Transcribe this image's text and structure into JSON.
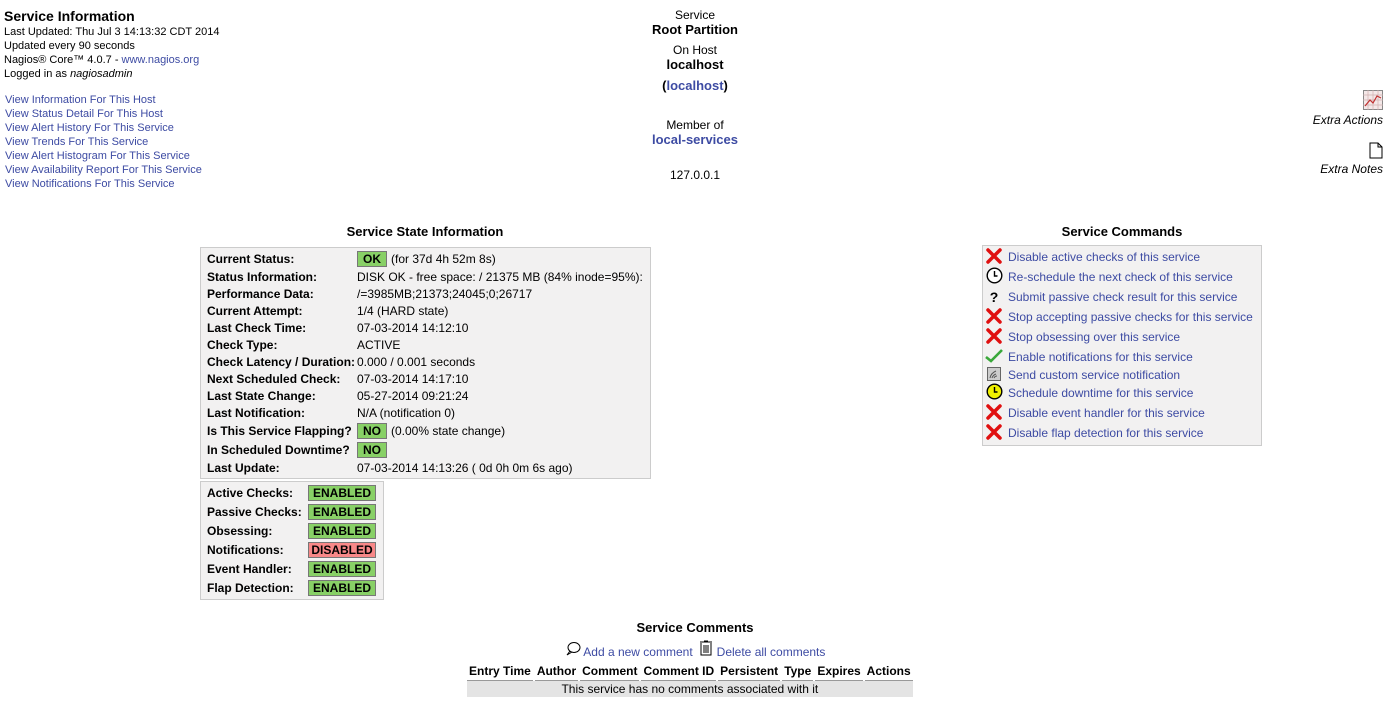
{
  "info": {
    "title": "Service Information",
    "last_updated": "Last Updated: Thu Jul 3 14:13:32 CDT 2014",
    "update_interval": "Updated every 90 seconds",
    "version_prefix": "Nagios® Core™ 4.0.7 - ",
    "version_link": "www.nagios.org",
    "logged_in_prefix": "Logged in as ",
    "user": "nagiosadmin"
  },
  "nav_links": [
    "View Information For This Host",
    "View Status Detail For This Host",
    "View Alert History For This Service",
    "View Trends For This Service",
    "View Alert Histogram For This Service",
    "View Availability Report For This Service",
    "View Notifications For This Service"
  ],
  "header": {
    "service_label": "Service",
    "service_name": "Root Partition",
    "host_label": "On Host",
    "host_name": "localhost",
    "host_alias": "localhost",
    "member_label": "Member of",
    "group": "local-services",
    "address": "127.0.0.1"
  },
  "extras": {
    "actions": "Extra Actions",
    "notes": "Extra Notes"
  },
  "state": {
    "title": "Service State Information",
    "rows": [
      {
        "label": "Current Status:",
        "badge": "OK",
        "value": "(for 37d 4h 52m 8s)"
      },
      {
        "label": "Status Information:",
        "value": "DISK OK - free space: / 21375 MB (84% inode=95%):"
      },
      {
        "label": "Performance Data:",
        "value": "/=3985MB;21373;24045;0;26717"
      },
      {
        "label": "Current Attempt:",
        "value": "1/4  (HARD state)"
      },
      {
        "label": "Last Check Time:",
        "value": "07-03-2014 14:12:10"
      },
      {
        "label": "Check Type:",
        "value": "ACTIVE"
      },
      {
        "label": "Check Latency / Duration:",
        "value": "0.000 / 0.001 seconds"
      },
      {
        "label": "Next Scheduled Check:",
        "value": "07-03-2014 14:17:10"
      },
      {
        "label": "Last State Change:",
        "value": "05-27-2014 09:21:24"
      },
      {
        "label": "Last Notification:",
        "value": "N/A (notification 0)"
      },
      {
        "label": "Is This Service Flapping?",
        "badge": "NO",
        "value": "(0.00% state change)"
      },
      {
        "label": "In Scheduled Downtime?",
        "badge": "NO",
        "value": ""
      },
      {
        "label": "Last Update:",
        "value": "07-03-2014 14:13:26  ( 0d 0h 0m 6s ago)"
      }
    ]
  },
  "features": [
    {
      "label": "Active Checks:",
      "value": "ENABLED",
      "color": "#88d066"
    },
    {
      "label": "Passive Checks:",
      "value": "ENABLED",
      "color": "#88d066"
    },
    {
      "label": "Obsessing:",
      "value": "ENABLED",
      "color": "#88d066"
    },
    {
      "label": "Notifications:",
      "value": "DISABLED",
      "color": "#f88888"
    },
    {
      "label": "Event Handler:",
      "value": "ENABLED",
      "color": "#88d066"
    },
    {
      "label": "Flap Detection:",
      "value": "ENABLED",
      "color": "#88d066"
    }
  ],
  "commands": {
    "title": "Service Commands",
    "items": [
      {
        "icon": "disable-x-icon",
        "label": "Disable active checks of this service"
      },
      {
        "icon": "clock-icon",
        "label": "Re-schedule the next check of this service"
      },
      {
        "icon": "question-icon",
        "label": "Submit passive check result for this service"
      },
      {
        "icon": "disable-x-icon",
        "label": "Stop accepting passive checks for this service"
      },
      {
        "icon": "disable-x-icon",
        "label": "Stop obsessing over this service"
      },
      {
        "icon": "checkmark-icon",
        "label": "Enable notifications for this service"
      },
      {
        "icon": "notification-icon",
        "label": "Send custom service notification"
      },
      {
        "icon": "downtime-clock-icon",
        "label": "Schedule downtime for this service"
      },
      {
        "icon": "disable-x-icon",
        "label": "Disable event handler for this service"
      },
      {
        "icon": "disable-x-icon",
        "label": "Disable flap detection for this service"
      }
    ]
  },
  "comments": {
    "title": "Service Comments",
    "add": "Add a new comment",
    "delete": "Delete all comments",
    "columns": [
      "Entry Time",
      "Author",
      "Comment",
      "Comment ID",
      "Persistent",
      "Type",
      "Expires",
      "Actions"
    ],
    "empty": "This service has no comments associated with it"
  }
}
